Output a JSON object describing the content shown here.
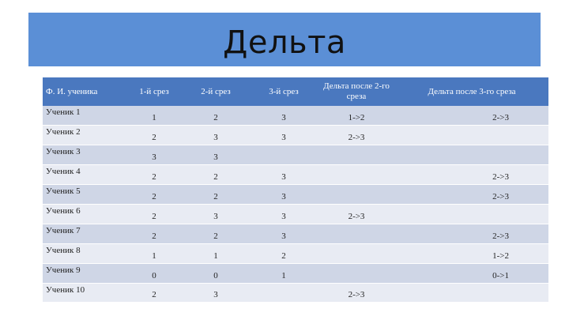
{
  "title": "Дельта",
  "table": {
    "headers": [
      "Ф. И. ученика",
      "1-й срез",
      "2-й срез",
      "3-й срез",
      "Дельта после 2-го среза",
      "Дельта после 3-го среза"
    ],
    "rows": [
      [
        "Ученик 1",
        "1",
        "2",
        "3",
        "1->2",
        "2->3"
      ],
      [
        "Ученик 2",
        "2",
        "3",
        "3",
        "2->3",
        ""
      ],
      [
        "Ученик 3",
        "3",
        "3",
        "",
        "",
        ""
      ],
      [
        "Ученик 4",
        "2",
        "2",
        "3",
        "",
        "2->3"
      ],
      [
        "Ученик 5",
        "2",
        "2",
        "3",
        "",
        "2->3"
      ],
      [
        "Ученик 6",
        "2",
        "3",
        "3",
        "2->3",
        ""
      ],
      [
        "Ученик 7",
        "2",
        "2",
        "3",
        "",
        "2->3"
      ],
      [
        "Ученик 8",
        "1",
        "1",
        "2",
        "",
        "1->2"
      ],
      [
        "Ученик 9",
        "0",
        "0",
        "1",
        "",
        "0->1"
      ],
      [
        "Ученик 10",
        "2",
        "3",
        "",
        "2->3",
        ""
      ]
    ]
  },
  "colors": {
    "title_bar": "#5b8fd6",
    "header_bg": "#4a78bf",
    "row_dark": "#cfd6e6",
    "row_light": "#e8ebf3"
  }
}
